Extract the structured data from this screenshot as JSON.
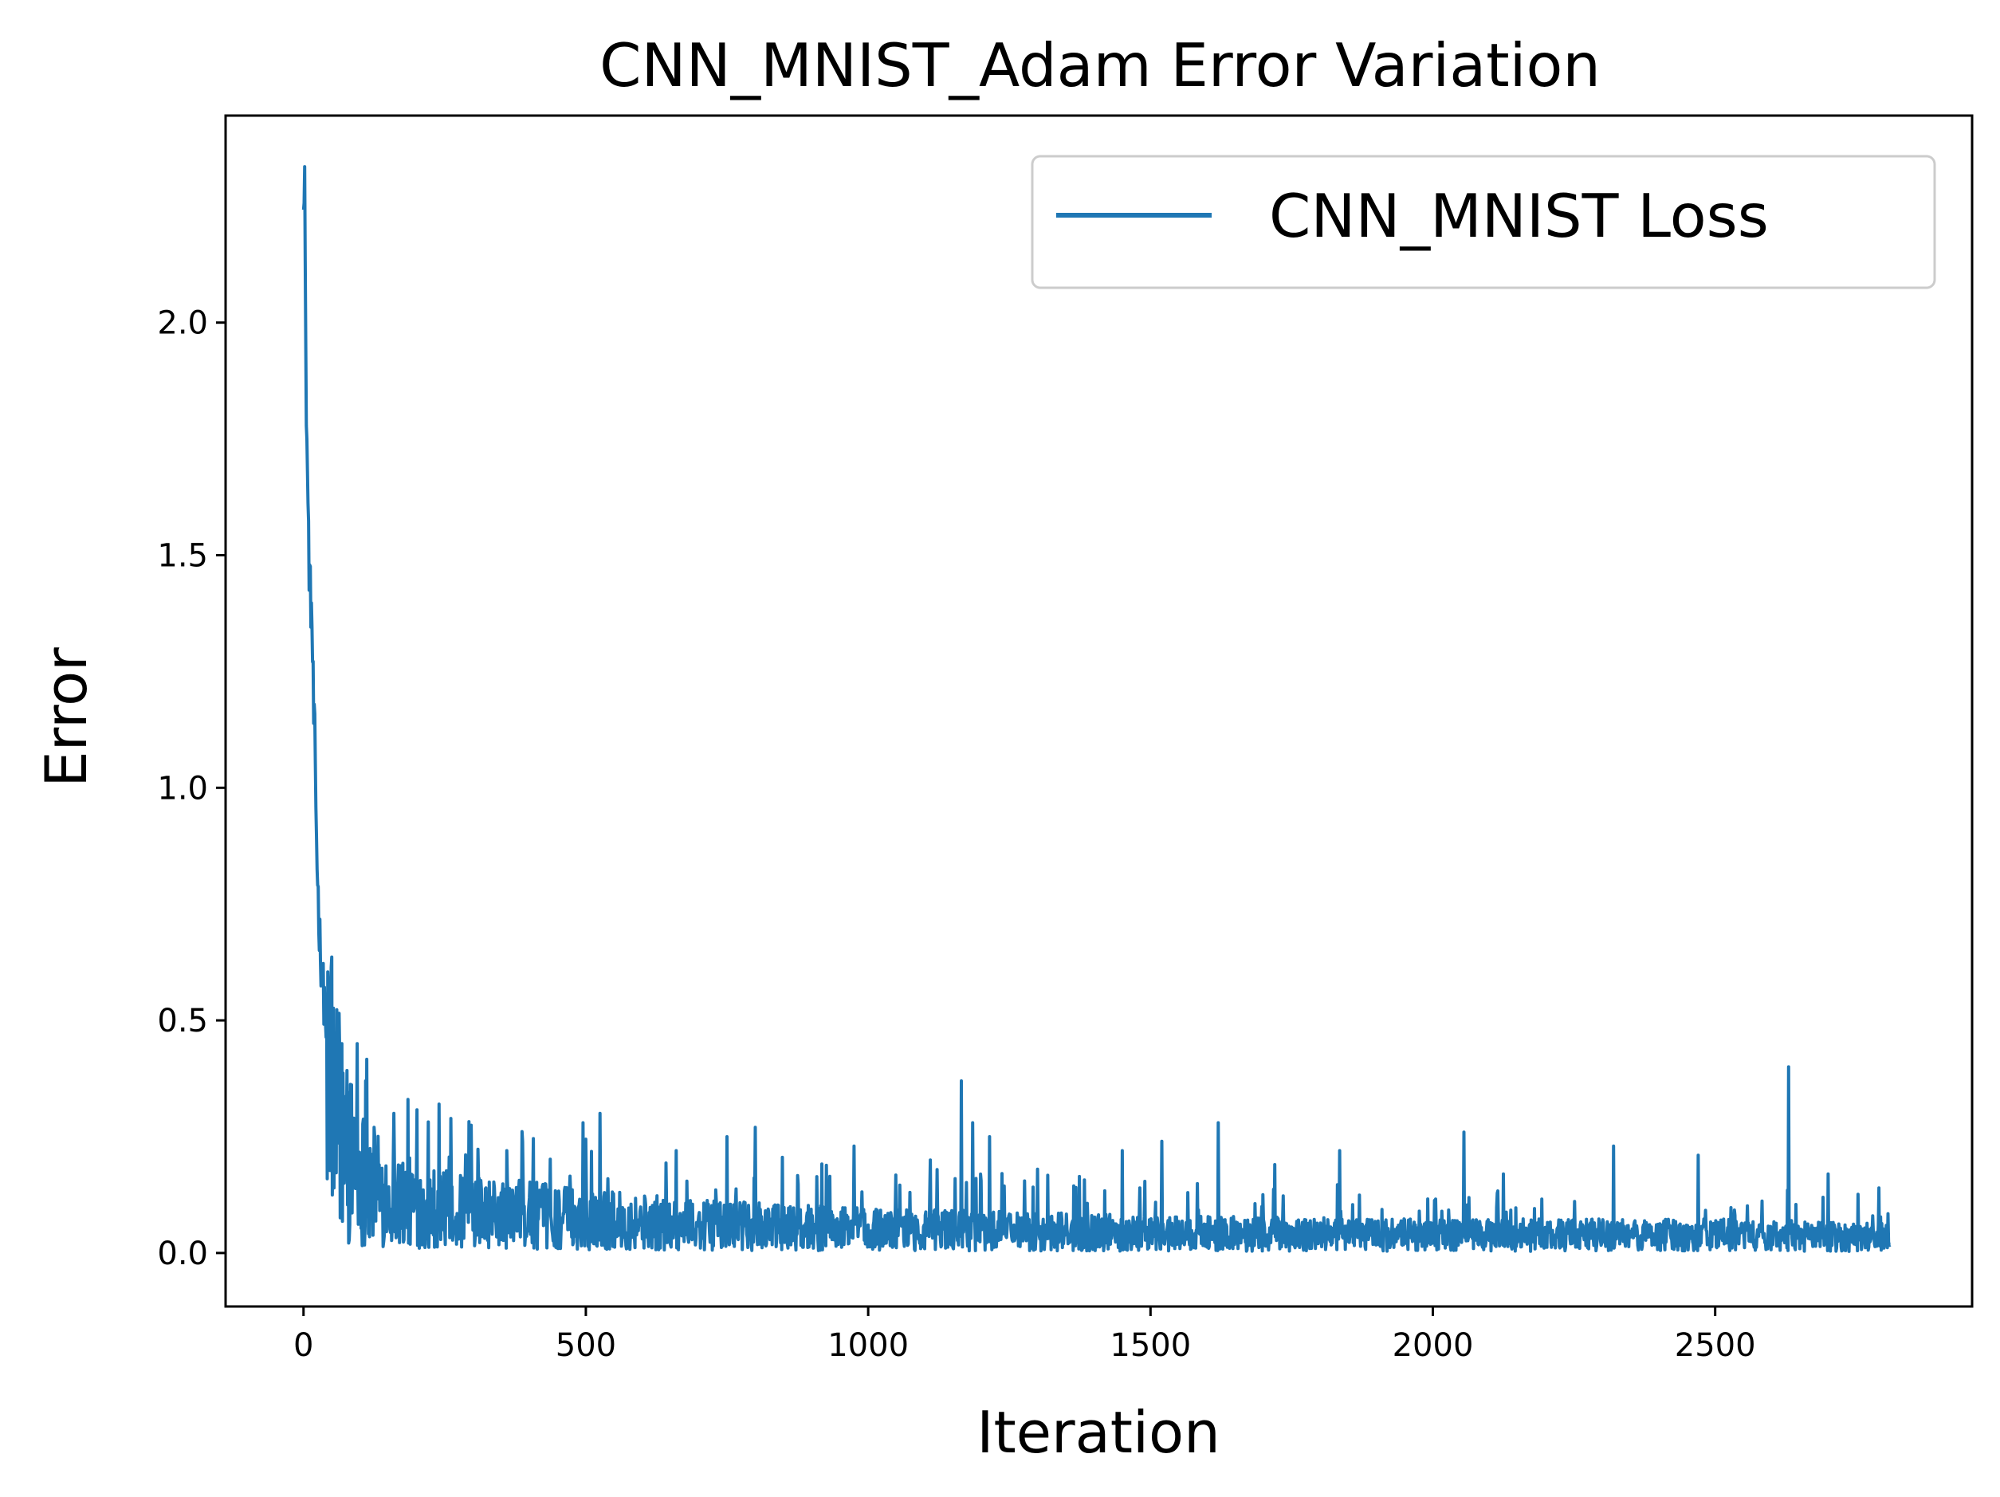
{
  "chart_data": {
    "type": "line",
    "title": "CNN_MNIST_Adam Error Variation",
    "xlabel": "Iteration",
    "ylabel": "Error",
    "xlim": [
      -138,
      2955
    ],
    "ylim": [
      -0.115,
      2.445
    ],
    "xticks": [
      0,
      500,
      1000,
      1500,
      2000,
      2500
    ],
    "xtick_labels": [
      "0",
      "500",
      "1000",
      "1500",
      "2000",
      "2500"
    ],
    "yticks": [
      0.0,
      0.5,
      1.0,
      1.5,
      2.0
    ],
    "ytick_labels": [
      "0.0",
      "0.5",
      "1.0",
      "1.5",
      "2.0"
    ],
    "grid": false,
    "legend_position": "top-right",
    "series": [
      {
        "name": "CNN_MNIST Loss",
        "color": "#1f77b4",
        "x_range": [
          0,
          2810
        ],
        "anchor_points": [
          [
            0,
            2.3
          ],
          [
            2,
            2.33
          ],
          [
            4,
            1.9
          ],
          [
            6,
            1.75
          ],
          [
            8,
            1.6
          ],
          [
            10,
            1.48
          ],
          [
            12,
            1.42
          ],
          [
            15,
            1.35
          ],
          [
            18,
            1.15
          ],
          [
            20,
            1.1
          ],
          [
            23,
            0.9
          ],
          [
            25,
            0.8
          ],
          [
            28,
            0.7
          ],
          [
            30,
            0.65
          ],
          [
            33,
            0.6
          ],
          [
            36,
            0.55
          ],
          [
            40,
            0.5
          ],
          [
            45,
            0.46
          ],
          [
            50,
            0.42
          ],
          [
            60,
            0.36
          ],
          [
            70,
            0.3
          ],
          [
            80,
            0.25
          ],
          [
            100,
            0.2
          ],
          [
            130,
            0.16
          ],
          [
            160,
            0.14
          ],
          [
            200,
            0.12
          ],
          [
            300,
            0.1
          ],
          [
            400,
            0.095
          ],
          [
            500,
            0.085
          ],
          [
            700,
            0.07
          ],
          [
            1000,
            0.06
          ],
          [
            1500,
            0.05
          ],
          [
            2000,
            0.045
          ],
          [
            2500,
            0.045
          ],
          [
            2810,
            0.04
          ]
        ],
        "spikes": [
          [
            55,
            0.41
          ],
          [
            68,
            0.45
          ],
          [
            95,
            0.45
          ],
          [
            110,
            0.37
          ],
          [
            125,
            0.27
          ],
          [
            160,
            0.3
          ],
          [
            185,
            0.33
          ],
          [
            240,
            0.32
          ],
          [
            360,
            0.22
          ],
          [
            495,
            0.28
          ],
          [
            525,
            0.3
          ],
          [
            660,
            0.22
          ],
          [
            750,
            0.25
          ],
          [
            800,
            0.27
          ],
          [
            975,
            0.23
          ],
          [
            1110,
            0.2
          ],
          [
            1165,
            0.37
          ],
          [
            1185,
            0.28
          ],
          [
            1215,
            0.25
          ],
          [
            1300,
            0.18
          ],
          [
            1450,
            0.22
          ],
          [
            1520,
            0.24
          ],
          [
            1620,
            0.28
          ],
          [
            1720,
            0.19
          ],
          [
            1835,
            0.22
          ],
          [
            2055,
            0.26
          ],
          [
            2125,
            0.17
          ],
          [
            2320,
            0.23
          ],
          [
            2470,
            0.21
          ],
          [
            2630,
            0.4
          ],
          [
            2700,
            0.17
          ],
          [
            2790,
            0.14
          ]
        ]
      }
    ]
  }
}
